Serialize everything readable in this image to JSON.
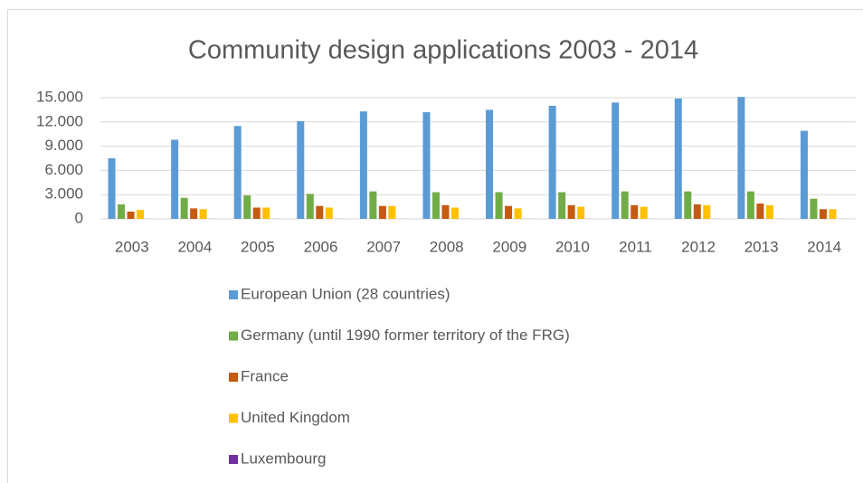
{
  "chart_data": {
    "type": "bar",
    "title": "Community design applications 2003 - 2014",
    "categories": [
      "2003",
      "2004",
      "2005",
      "2006",
      "2007",
      "2008",
      "2009",
      "2010",
      "2011",
      "2012",
      "2013",
      "2014"
    ],
    "series": [
      {
        "name": "European Union (28 countries)",
        "color": "#5b9bd5",
        "values": [
          7500,
          9800,
          11500,
          12100,
          13300,
          13200,
          13500,
          14000,
          14400,
          14900,
          15100,
          10900
        ]
      },
      {
        "name": "Germany (until 1990 former territory of the FRG)",
        "color": "#70ad47",
        "values": [
          1800,
          2600,
          2900,
          3100,
          3400,
          3300,
          3300,
          3300,
          3400,
          3400,
          3400,
          2500
        ]
      },
      {
        "name": "France",
        "color": "#c55a11",
        "values": [
          900,
          1300,
          1400,
          1600,
          1600,
          1700,
          1600,
          1700,
          1700,
          1800,
          1900,
          1200
        ]
      },
      {
        "name": "United Kingdom",
        "color": "#ffc000",
        "values": [
          1100,
          1200,
          1400,
          1400,
          1600,
          1400,
          1300,
          1500,
          1500,
          1700,
          1700,
          1200
        ]
      },
      {
        "name": "Luxembourg",
        "color": "#7030a0",
        "values": [
          10,
          10,
          10,
          10,
          10,
          10,
          10,
          10,
          10,
          10,
          10,
          10
        ]
      }
    ],
    "ylim": [
      0,
      15000
    ],
    "yticks": [
      0,
      {
        "value": 3000,
        "label": "3.000"
      },
      {
        "value": 6000,
        "label": "6.000"
      },
      {
        "value": 9000,
        "label": "9.000"
      },
      {
        "value": 12000,
        "label": "12.000"
      },
      {
        "value": 15000,
        "label": "15.000"
      }
    ],
    "grid": true,
    "legend": "bottom"
  }
}
